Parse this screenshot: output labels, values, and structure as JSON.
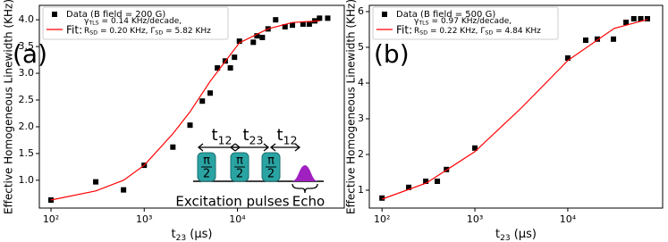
{
  "chart_data": [
    {
      "type": "scatter",
      "panel_label": "(a)",
      "xscale": "log",
      "legend": "upper left",
      "xlabel": {
        "text": "t",
        "sub": "23",
        "rest": " (μs)"
      },
      "ylabel": "Effective Homogeneous Linewidth (KHz)",
      "xlim": [
        75,
        140000
      ],
      "ylim": [
        0.48,
        4.27
      ],
      "xticks": [
        {
          "value": 100,
          "label": "10²"
        },
        {
          "value": 1000,
          "label": "10³"
        },
        {
          "value": 10000,
          "label": "10⁴"
        }
      ],
      "yticks": [
        {
          "value": 1,
          "label": "1.0"
        },
        1.5,
        {
          "value": 2,
          "label": "2.0"
        },
        2.5,
        {
          "value": 3,
          "label": "3.0"
        },
        3.5,
        {
          "value": 4,
          "label": "4.0"
        }
      ],
      "series": [
        {
          "name": "Data (B field = 200 G)",
          "style": "marker",
          "color": "#000000",
          "x": [
            100,
            302,
            600,
            1000,
            2030,
            3100,
            4200,
            5100,
            6100,
            7400,
            8400,
            9300,
            10500,
            14800,
            16200,
            18500,
            21300,
            25700,
            32400,
            38900,
            50500,
            59000,
            67600,
            76000,
            93000
          ],
          "values": [
            0.63,
            0.97,
            0.82,
            1.28,
            1.62,
            2.03,
            2.48,
            2.63,
            3.1,
            3.23,
            3.1,
            3.3,
            3.6,
            3.58,
            3.7,
            3.67,
            3.83,
            4.0,
            3.87,
            3.9,
            3.92,
            3.92,
            3.98,
            4.03,
            4.03
          ]
        },
        {
          "name": "Fit:",
          "style": "line",
          "color": "#ff0000",
          "x": [
            100,
            302,
            600,
            1000,
            2030,
            3100,
            5100,
            10500,
            21300,
            38900,
            76000
          ],
          "values": [
            0.63,
            0.8,
            1.0,
            1.28,
            1.87,
            2.28,
            2.85,
            3.57,
            3.83,
            3.95,
            3.98
          ],
          "params": [
            [
              {
                "text": "γ",
                "sub": "TLS",
                "rest": " = 0.14 KHz/decade,"
              }
            ],
            [
              {
                "text": "R",
                "sub": "SD",
                "rest": " = 0.20 KHz, "
              },
              {
                "text": "Γ",
                "sub": "SD",
                "rest": " = 5.82 KHz"
              }
            ]
          ]
        }
      ],
      "inset": {
        "delays": [
          {
            "text": "t",
            "sub": "12"
          },
          {
            "text": "t",
            "sub": "23"
          },
          {
            "text": "t",
            "sub": "12"
          }
        ],
        "pulse_label": {
          "num": "π",
          "den": "2"
        },
        "pulses_label": "Excitation pulses",
        "echo_label": "Echo"
      }
    },
    {
      "type": "scatter",
      "panel_label": "(b)",
      "xscale": "log",
      "legend": "upper left",
      "xlabel": {
        "text": "t",
        "sub": "23",
        "rest": " (μs)"
      },
      "ylabel": "Effective Homogeneous Linewidth (KHz)",
      "xlim": [
        73,
        105000
      ],
      "ylim": [
        0.5,
        6.175
      ],
      "xticks": [
        {
          "value": 100,
          "label": "10²"
        },
        {
          "value": 1000,
          "label": "10³"
        },
        {
          "value": 10000,
          "label": "10⁴"
        }
      ],
      "yticks": [
        1,
        2,
        3,
        4,
        5,
        6
      ],
      "series": [
        {
          "name": "Data (B field = 500 G)",
          "style": "marker",
          "color": "#000000",
          "x": [
            100,
            194,
            296,
            394,
            494,
            1000,
            10000,
            15600,
            20800,
            31000,
            42400,
            51400,
            61000,
            72000
          ],
          "values": [
            0.78,
            1.08,
            1.25,
            1.25,
            1.58,
            2.18,
            4.7,
            5.2,
            5.23,
            5.23,
            5.7,
            5.8,
            5.8,
            5.8
          ]
        },
        {
          "name": "Fit:",
          "style": "line",
          "color": "#ff0000",
          "x": [
            100,
            300,
            1000,
            3150,
            10000,
            31600,
            72000
          ],
          "values": [
            0.75,
            1.2,
            2.08,
            3.3,
            4.63,
            5.53,
            5.78
          ],
          "params": [
            [
              {
                "text": "γ",
                "sub": "TLS",
                "rest": " = 0.97 KHz/decade,"
              }
            ],
            [
              {
                "text": "R",
                "sub": "SD",
                "rest": " = 0.22 KHz, "
              },
              {
                "text": "Γ",
                "sub": "SD",
                "rest": " = 4.84 KHz"
              }
            ]
          ]
        }
      ]
    }
  ]
}
